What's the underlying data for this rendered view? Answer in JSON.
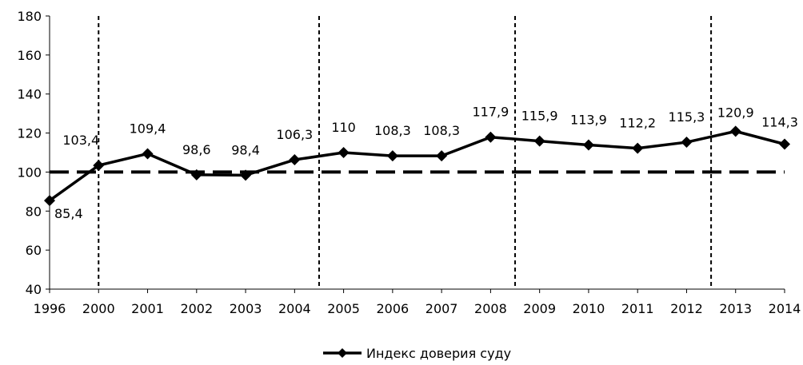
{
  "chart_data": {
    "type": "line",
    "categories": [
      "1996",
      "2000",
      "2001",
      "2002",
      "2003",
      "2004",
      "2005",
      "2006",
      "2007",
      "2008",
      "2009",
      "2010",
      "2011",
      "2012",
      "2013",
      "2014"
    ],
    "series": [
      {
        "name": "Индекс доверия суду",
        "values": [
          85.4,
          103.4,
          109.4,
          98.6,
          98.4,
          106.3,
          110,
          108.3,
          108.3,
          117.9,
          115.9,
          113.9,
          112.2,
          115.3,
          120.9,
          114.3
        ],
        "labels": [
          "85,4",
          "103,4",
          "109,4",
          "98,6",
          "98,4",
          "106,3",
          "110",
          "108,3",
          "108,3",
          "117,9",
          "115,9",
          "113,9",
          "112,2",
          "115,3",
          "120,9",
          "114,3"
        ],
        "color": "#000000",
        "marker": "diamond"
      }
    ],
    "yticks": [
      "40",
      "60",
      "80",
      "100",
      "120",
      "140",
      "160",
      "180"
    ],
    "ylim": [
      40,
      180
    ],
    "reference_line": {
      "y": 100,
      "style": "dashed"
    },
    "period_dividers_after": [
      "1996",
      "2004",
      "2008",
      "2012"
    ],
    "grid": false,
    "legend": "bottom-center"
  }
}
